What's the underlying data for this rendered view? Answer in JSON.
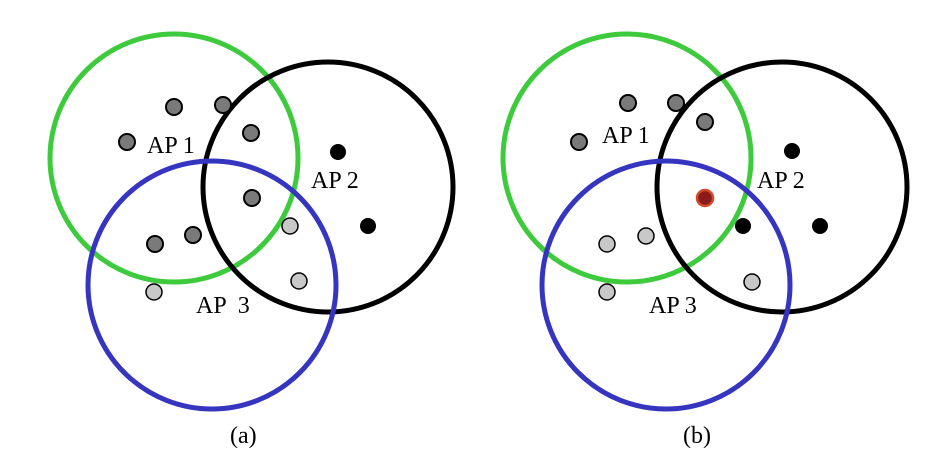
{
  "colors": {
    "ap1": "#3dca3d",
    "ap2": "#000000",
    "ap3": "#3535c0",
    "dark_gray_node": "#7a7a7a",
    "light_gray_node": "#c8c8c8",
    "black_node": "#000000",
    "highlight_node_fill": "#8b1a1a",
    "highlight_node_ring": "#d24a2a"
  },
  "panels": [
    {
      "caption": "(a)",
      "aps": [
        {
          "id": "ap1",
          "label": "AP 1",
          "color_key": "ap1"
        },
        {
          "id": "ap2",
          "label": "AP 2",
          "color_key": "ap2"
        },
        {
          "id": "ap3",
          "label": "AP  3",
          "color_key": "ap3"
        }
      ],
      "node_counts": {
        "dark_gray": 7,
        "light_gray": 3,
        "black": 2,
        "highlight": 0
      }
    },
    {
      "caption": "(b)",
      "aps": [
        {
          "id": "ap1",
          "label": "AP 1",
          "color_key": "ap1"
        },
        {
          "id": "ap2",
          "label": "AP 2",
          "color_key": "ap2"
        },
        {
          "id": "ap3",
          "label": "AP 3",
          "color_key": "ap3"
        }
      ],
      "node_counts": {
        "dark_gray": 4,
        "light_gray": 4,
        "black": 3,
        "highlight": 1
      }
    }
  ]
}
